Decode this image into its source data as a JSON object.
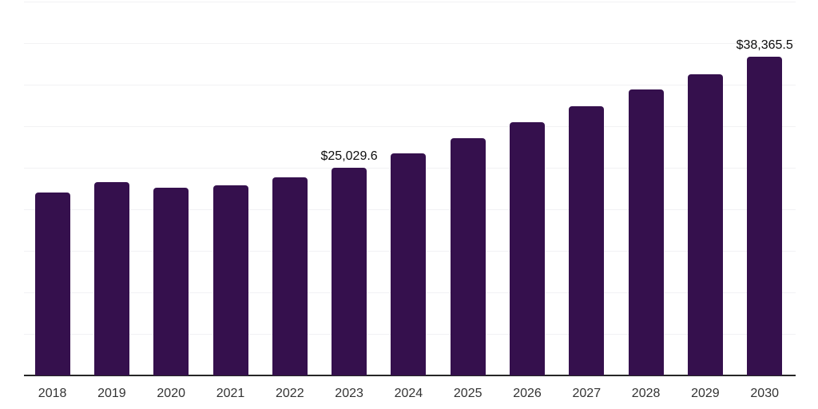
{
  "chart_data": {
    "type": "bar",
    "title": "",
    "xlabel": "",
    "ylabel": "",
    "categories": [
      "2018",
      "2019",
      "2020",
      "2021",
      "2022",
      "2023",
      "2024",
      "2025",
      "2026",
      "2027",
      "2028",
      "2029",
      "2030"
    ],
    "values": [
      22000,
      23290,
      22570,
      22900,
      23860,
      25029.6,
      26700,
      28530,
      30450,
      32370,
      34390,
      36220,
      38365.5
    ],
    "data_labels": {
      "2023": "$25,029.6",
      "2030": "$38,365.5"
    },
    "value_prefix": "$",
    "ylim": [
      0,
      45000
    ],
    "gridline_step": 5000,
    "grid": true,
    "legend": false,
    "colors": {
      "bar": "#35104D",
      "axis": "#262626",
      "gridline": "#f2f2f4",
      "tick_label": "#333333",
      "data_label": "#0d0d0d"
    }
  }
}
